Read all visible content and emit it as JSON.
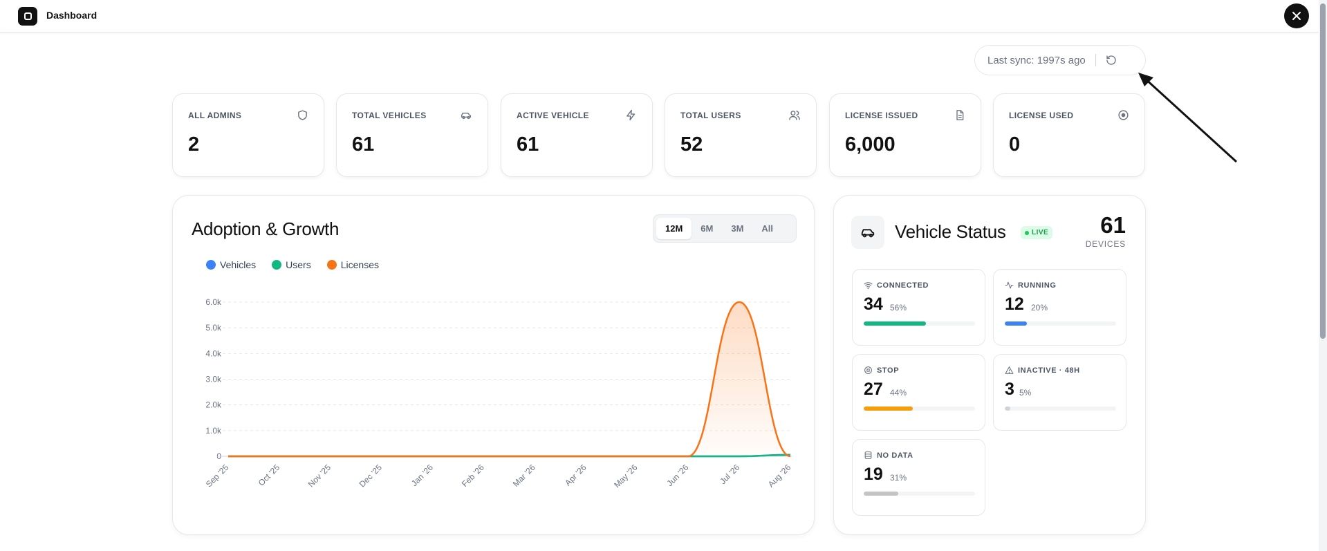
{
  "header": {
    "title": "Dashboard",
    "logo_icon": "app-logo-icon",
    "close_icon": "close-icon"
  },
  "sync": {
    "text": "Last sync: 1997s ago",
    "refresh_icon": "refresh-icon"
  },
  "stats": [
    {
      "label": "ALL ADMINS",
      "value": "2",
      "icon": "shield-icon"
    },
    {
      "label": "TOTAL VEHICLES",
      "value": "61",
      "icon": "car-icon"
    },
    {
      "label": "ACTIVE VEHICLE",
      "value": "61",
      "icon": "lightning-icon"
    },
    {
      "label": "TOTAL USERS",
      "value": "52",
      "icon": "users-icon"
    },
    {
      "label": "LICENSE ISSUED",
      "value": "6,000",
      "icon": "document-icon"
    },
    {
      "label": "LICENSE USED",
      "value": "0",
      "icon": "target-icon"
    }
  ],
  "adoption": {
    "title": "Adoption & Growth",
    "ranges": [
      "12M",
      "6M",
      "3M",
      "All"
    ],
    "active_range": "12M"
  },
  "chart_data": {
    "type": "area",
    "title": "Adoption & Growth",
    "x": [
      "Sep '25",
      "Oct '25",
      "Nov '25",
      "Dec '25",
      "Jan '26",
      "Feb '26",
      "Mar '26",
      "Apr '26",
      "May '26",
      "Jun '26",
      "Jul '26",
      "Aug '26"
    ],
    "yticks": [
      "0",
      "1.0k",
      "2.0k",
      "3.0k",
      "4.0k",
      "5.0k",
      "6.0k"
    ],
    "ylim": [
      0,
      6000
    ],
    "grid": true,
    "legend": "top-left",
    "series": [
      {
        "name": "Vehicles",
        "color": "#3b82f6",
        "values": [
          0,
          0,
          0,
          0,
          0,
          0,
          0,
          0,
          0,
          0,
          0,
          61
        ]
      },
      {
        "name": "Users",
        "color": "#10b981",
        "values": [
          0,
          0,
          0,
          0,
          0,
          0,
          0,
          0,
          0,
          0,
          0,
          52
        ]
      },
      {
        "name": "Licenses",
        "color": "#f97316",
        "values": [
          0,
          0,
          0,
          0,
          0,
          0,
          0,
          0,
          0,
          0,
          6000,
          0
        ]
      }
    ]
  },
  "vehicle_status": {
    "title": "Vehicle Status",
    "live_label": "LIVE",
    "total": "61",
    "total_label": "DEVICES",
    "car_icon": "car-icon",
    "cards": [
      {
        "label": "CONNECTED",
        "value": "34",
        "pct": "56%",
        "fraction": 0.56,
        "color": "#10b981",
        "icon": "wifi-icon"
      },
      {
        "label": "RUNNING",
        "value": "12",
        "pct": "20%",
        "fraction": 0.2,
        "color": "#3b82f6",
        "icon": "activity-icon"
      },
      {
        "label": "STOP",
        "value": "27",
        "pct": "44%",
        "fraction": 0.44,
        "color": "#f59e0b",
        "icon": "stop-icon"
      },
      {
        "label": "INACTIVE · 48H",
        "value": "3",
        "pct": "5%",
        "fraction": 0.05,
        "color": "#d1d5db",
        "icon": "warning-icon"
      },
      {
        "label": "NO DATA",
        "value": "19",
        "pct": "31%",
        "fraction": 0.31,
        "color": "#c4c4c4",
        "icon": "database-icon"
      }
    ]
  }
}
